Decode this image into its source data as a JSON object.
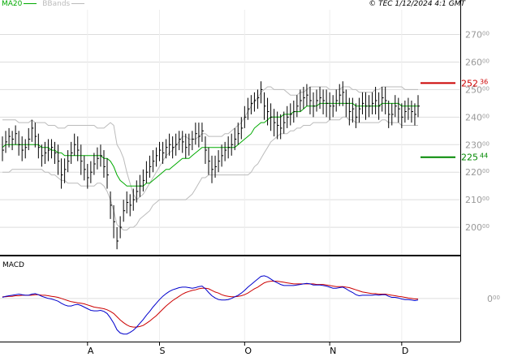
{
  "legend": {
    "ma_label": "MA20",
    "bb_label": "BBands"
  },
  "source": "© TEC 1/12/2024 4:1 GMT",
  "macd": {
    "label": "MACD"
  },
  "colors": {
    "background": "#ffffff",
    "grid": "#dddddd",
    "axis": "#999999",
    "border": "#000000",
    "price": "#000000",
    "ma20": "#00aa00",
    "bbands": "#bbbbbb",
    "resistance": "#cc0000",
    "support": "#008800",
    "macd_line": "#0000cc",
    "signal_line": "#cc0000"
  },
  "chart_data": [
    {
      "type": "ohlc",
      "x_ticks": [
        "A",
        "S",
        "O",
        "N",
        "D"
      ],
      "y_ticks": [
        {
          "int": "200",
          "dec": "00"
        },
        {
          "int": "210",
          "dec": "00"
        },
        {
          "int": "220",
          "dec": "00"
        },
        {
          "int": "230",
          "dec": "00"
        },
        {
          "int": "240",
          "dec": "00"
        },
        {
          "int": "250",
          "dec": "00"
        },
        {
          "int": "260",
          "dec": "00"
        },
        {
          "int": "270",
          "dec": "00"
        }
      ],
      "y_tick_values": [
        200,
        210,
        220,
        230,
        240,
        250,
        260,
        270
      ],
      "ylim": [
        190,
        279
      ],
      "grid": true,
      "levels": [
        {
          "name": "resistance",
          "value": 252.36,
          "int": "252",
          "dec": "36"
        },
        {
          "name": "support",
          "value": 225.44,
          "int": "225",
          "dec": "44"
        }
      ],
      "close": [
        228,
        231,
        233,
        232,
        234,
        230,
        228,
        229,
        232,
        236,
        233,
        229,
        226,
        227,
        228,
        229,
        227,
        224,
        219,
        221,
        224,
        227,
        230,
        228,
        224,
        221,
        218,
        220,
        223,
        225,
        226,
        222,
        219,
        208,
        202,
        195,
        200,
        206,
        209,
        208,
        210,
        213,
        215,
        217,
        220,
        222,
        224,
        226,
        228,
        227,
        229,
        230,
        229,
        230,
        232,
        231,
        229,
        230,
        232,
        234,
        233,
        235,
        228,
        224,
        221,
        222,
        224,
        226,
        228,
        229,
        230,
        232,
        234,
        236,
        240,
        243,
        245,
        246,
        247,
        250,
        244,
        242,
        240,
        238,
        237,
        236,
        238,
        240,
        241,
        242,
        244,
        246,
        247,
        248,
        246,
        244,
        246,
        247,
        246,
        245,
        244,
        244,
        246,
        248,
        249,
        245,
        242,
        243,
        240,
        243,
        245,
        244,
        244,
        245,
        246,
        244,
        247,
        246,
        241,
        241,
        244,
        243,
        240,
        242,
        243,
        242,
        241,
        244
      ],
      "high": [
        233,
        235,
        236,
        235,
        237,
        235,
        233,
        232,
        236,
        239,
        238,
        234,
        230,
        231,
        232,
        232,
        231,
        230,
        225,
        225,
        228,
        231,
        234,
        233,
        230,
        226,
        223,
        224,
        227,
        229,
        230,
        228,
        225,
        213,
        208,
        200,
        204,
        210,
        213,
        212,
        214,
        217,
        219,
        221,
        224,
        226,
        228,
        229,
        231,
        231,
        232,
        234,
        233,
        234,
        235,
        235,
        234,
        234,
        235,
        238,
        238,
        238,
        233,
        229,
        226,
        226,
        228,
        230,
        231,
        233,
        234,
        236,
        238,
        240,
        244,
        247,
        248,
        249,
        250,
        253,
        249,
        247,
        245,
        243,
        242,
        241,
        242,
        244,
        245,
        246,
        248,
        250,
        251,
        252,
        251,
        249,
        250,
        251,
        250,
        250,
        249,
        248,
        250,
        252,
        253,
        250,
        247,
        247,
        245,
        247,
        249,
        249,
        248,
        249,
        251,
        249,
        251,
        251,
        246,
        245,
        248,
        247,
        245,
        246,
        247,
        246,
        245,
        248
      ],
      "low": [
        224,
        227,
        229,
        228,
        230,
        226,
        224,
        225,
        228,
        231,
        229,
        225,
        222,
        223,
        224,
        225,
        223,
        219,
        214,
        216,
        220,
        223,
        226,
        224,
        219,
        217,
        214,
        216,
        219,
        221,
        222,
        218,
        214,
        203,
        196,
        192,
        196,
        202,
        205,
        204,
        206,
        209,
        211,
        213,
        216,
        218,
        220,
        222,
        224,
        223,
        225,
        226,
        225,
        226,
        228,
        227,
        225,
        226,
        228,
        230,
        229,
        231,
        223,
        219,
        216,
        218,
        220,
        222,
        224,
        225,
        226,
        228,
        230,
        232,
        236,
        239,
        241,
        242,
        243,
        245,
        239,
        237,
        235,
        233,
        232,
        232,
        234,
        236,
        237,
        238,
        240,
        242,
        243,
        244,
        241,
        240,
        242,
        243,
        241,
        240,
        239,
        240,
        242,
        244,
        244,
        240,
        237,
        238,
        236,
        238,
        241,
        239,
        240,
        241,
        241,
        239,
        242,
        241,
        236,
        237,
        240,
        238,
        236,
        238,
        239,
        238,
        237,
        240
      ],
      "bb_upper": [
        239,
        239,
        239,
        239,
        239,
        238,
        238,
        238,
        238,
        239,
        238,
        238,
        238,
        238,
        237,
        237,
        237,
        236,
        236,
        236,
        237,
        237,
        237,
        237,
        237,
        237,
        237,
        237,
        237,
        236,
        236,
        236,
        237,
        238,
        237,
        230,
        228,
        225,
        220,
        216,
        212,
        210,
        211,
        212,
        214,
        216,
        218,
        220,
        222,
        224,
        226,
        227,
        228,
        230,
        231,
        233,
        233,
        232,
        232,
        232,
        233,
        234,
        234,
        233,
        233,
        233,
        233,
        233,
        234,
        234,
        235,
        236,
        237,
        238,
        240,
        242,
        244,
        246,
        247,
        249,
        250,
        251,
        251,
        250,
        250,
        250,
        250,
        249,
        248,
        248,
        248,
        249,
        249,
        250,
        251,
        251,
        251,
        251,
        251,
        251,
        250,
        250,
        250,
        250,
        251,
        251,
        251,
        250,
        250,
        249,
        249,
        249,
        249,
        249,
        250,
        250,
        251,
        251,
        251,
        251,
        251,
        251,
        251,
        250,
        250,
        250,
        250,
        250
      ],
      "bb_lower": [
        220,
        220,
        220,
        221,
        221,
        221,
        221,
        221,
        221,
        221,
        221,
        221,
        221,
        220,
        220,
        219,
        219,
        218,
        217,
        217,
        216,
        216,
        216,
        216,
        215,
        215,
        215,
        215,
        215,
        216,
        216,
        215,
        213,
        210,
        206,
        201,
        200,
        199,
        199,
        200,
        200,
        201,
        203,
        204,
        205,
        206,
        208,
        209,
        210,
        210,
        210,
        210,
        210,
        210,
        210,
        210,
        210,
        211,
        212,
        214,
        216,
        218,
        218,
        219,
        219,
        219,
        219,
        219,
        219,
        219,
        219,
        219,
        219,
        219,
        219,
        219,
        220,
        222,
        223,
        225,
        227,
        229,
        231,
        232,
        233,
        234,
        234,
        234,
        235,
        235,
        236,
        236,
        237,
        237,
        237,
        238,
        238,
        238,
        238,
        238,
        239,
        239,
        239,
        239,
        240,
        240,
        239,
        239,
        238,
        238,
        238,
        238,
        238,
        238,
        238,
        238,
        239,
        239,
        238,
        238,
        238,
        238,
        237,
        237,
        237,
        237,
        237,
        237
      ],
      "ma20": [
        229,
        230,
        230,
        230,
        230,
        230,
        230,
        230,
        230,
        230,
        230,
        230,
        229,
        229,
        229,
        228,
        228,
        227,
        227,
        226,
        226,
        226,
        226,
        226,
        226,
        226,
        226,
        226,
        226,
        226,
        226,
        225,
        225,
        224,
        222,
        219,
        217,
        216,
        215,
        215,
        215,
        215,
        215,
        215,
        216,
        216,
        217,
        218,
        219,
        220,
        221,
        221,
        222,
        223,
        224,
        225,
        225,
        225,
        226,
        227,
        228,
        229,
        229,
        229,
        229,
        229,
        229,
        229,
        229,
        229,
        229,
        229,
        230,
        231,
        232,
        233,
        234,
        236,
        237,
        238,
        238,
        239,
        240,
        240,
        240,
        240,
        241,
        241,
        241,
        242,
        242,
        242,
        243,
        244,
        244,
        244,
        244,
        245,
        245,
        245,
        245,
        245,
        245,
        245,
        245,
        245,
        245,
        245,
        244,
        244,
        244,
        244,
        244,
        244,
        244,
        244,
        245,
        245,
        245,
        245,
        245,
        245,
        244,
        244,
        244,
        244,
        244,
        244
      ]
    },
    {
      "type": "line",
      "x_ticks": [
        "A",
        "S",
        "O",
        "N",
        "D"
      ],
      "y_ticks": [
        {
          "int": "0",
          "dec": "00"
        }
      ],
      "y_tick_values": [
        0
      ],
      "ylim": [
        -8.0,
        7.5
      ],
      "series": [
        {
          "values": [
            0.2,
            0.4,
            0.5,
            0.6,
            0.7,
            0.8,
            0.7,
            0.6,
            0.6,
            0.8,
            0.9,
            0.7,
            0.4,
            0.2,
            0.0,
            -0.1,
            -0.3,
            -0.5,
            -0.9,
            -1.2,
            -1.4,
            -1.4,
            -1.2,
            -1.1,
            -1.3,
            -1.6,
            -1.9,
            -2.2,
            -2.3,
            -2.3,
            -2.2,
            -2.4,
            -2.8,
            -3.6,
            -4.6,
            -5.8,
            -6.4,
            -6.6,
            -6.6,
            -6.3,
            -5.9,
            -5.3,
            -4.6,
            -3.9,
            -3.1,
            -2.4,
            -1.6,
            -0.9,
            -0.2,
            0.4,
            0.9,
            1.3,
            1.6,
            1.8,
            2.0,
            2.1,
            2.1,
            2.0,
            1.9,
            2.0,
            2.2,
            2.3,
            1.8,
            1.1,
            0.5,
            0.1,
            -0.2,
            -0.3,
            -0.3,
            -0.2,
            0.0,
            0.3,
            0.6,
            1.0,
            1.5,
            2.1,
            2.6,
            3.1,
            3.6,
            4.1,
            4.2,
            4.0,
            3.6,
            3.2,
            2.9,
            2.6,
            2.4,
            2.4,
            2.4,
            2.4,
            2.5,
            2.6,
            2.7,
            2.8,
            2.7,
            2.5,
            2.5,
            2.5,
            2.4,
            2.3,
            2.1,
            1.9,
            1.9,
            2.0,
            2.1,
            1.8,
            1.4,
            1.1,
            0.7,
            0.5,
            0.6,
            0.6,
            0.6,
            0.6,
            0.7,
            0.6,
            0.7,
            0.7,
            0.4,
            0.2,
            0.2,
            0.1,
            -0.1,
            -0.2,
            -0.2,
            -0.3,
            -0.4,
            -0.3
          ]
        },
        {
          "values": [
            0.3,
            0.3,
            0.4,
            0.4,
            0.5,
            0.5,
            0.6,
            0.6,
            0.6,
            0.6,
            0.7,
            0.7,
            0.6,
            0.6,
            0.5,
            0.4,
            0.3,
            0.2,
            0.0,
            -0.2,
            -0.4,
            -0.6,
            -0.7,
            -0.8,
            -0.9,
            -1.0,
            -1.2,
            -1.4,
            -1.6,
            -1.7,
            -1.8,
            -1.9,
            -2.1,
            -2.4,
            -2.8,
            -3.4,
            -4.0,
            -4.5,
            -4.9,
            -5.2,
            -5.3,
            -5.3,
            -5.2,
            -5.0,
            -4.6,
            -4.2,
            -3.7,
            -3.2,
            -2.6,
            -2.0,
            -1.4,
            -0.9,
            -0.4,
            0.0,
            0.4,
            0.8,
            1.1,
            1.3,
            1.5,
            1.6,
            1.8,
            1.9,
            1.9,
            1.8,
            1.5,
            1.2,
            1.0,
            0.7,
            0.5,
            0.4,
            0.3,
            0.3,
            0.4,
            0.5,
            0.7,
            1.0,
            1.4,
            1.8,
            2.1,
            2.5,
            2.9,
            3.1,
            3.2,
            3.2,
            3.2,
            3.1,
            3.0,
            2.9,
            2.8,
            2.7,
            2.7,
            2.7,
            2.7,
            2.7,
            2.7,
            2.7,
            2.6,
            2.6,
            2.6,
            2.5,
            2.4,
            2.3,
            2.2,
            2.2,
            2.2,
            2.1,
            2.0,
            1.8,
            1.6,
            1.4,
            1.2,
            1.1,
            1.0,
            0.9,
            0.9,
            0.8,
            0.8,
            0.8,
            0.7,
            0.6,
            0.5,
            0.4,
            0.3,
            0.2,
            0.1,
            0.0,
            -0.1,
            -0.1
          ]
        }
      ]
    }
  ]
}
